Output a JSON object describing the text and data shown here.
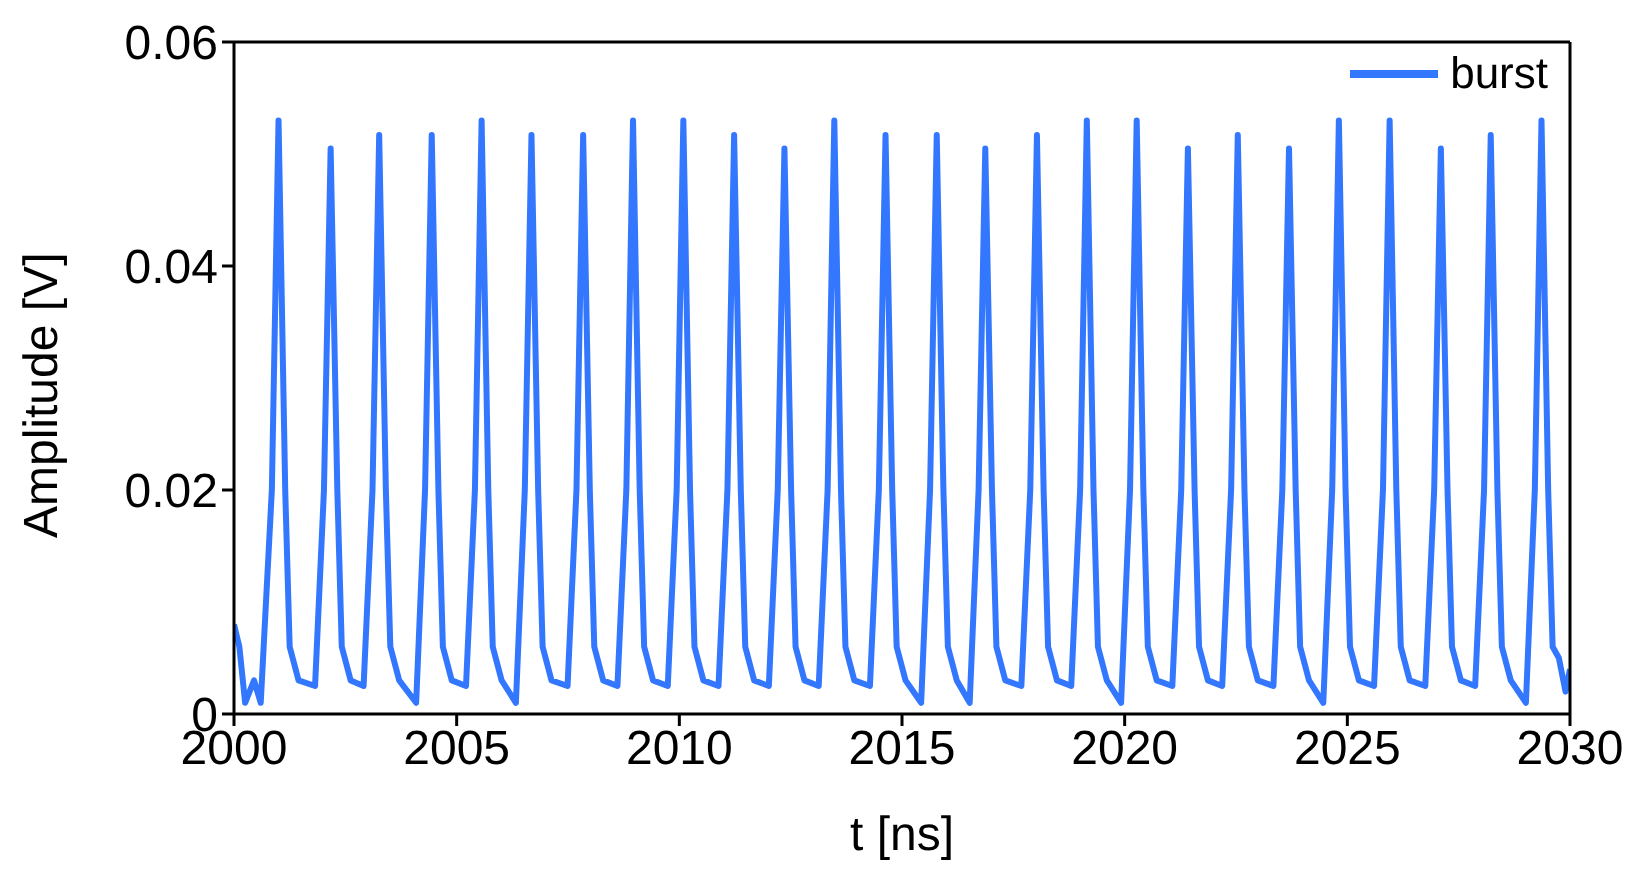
{
  "chart_data": {
    "type": "line",
    "xlabel": "t [ns]",
    "ylabel": "Amplitude [V]",
    "xlim": [
      2000,
      2030
    ],
    "xticks": [
      2000,
      2005,
      2010,
      2015,
      2020,
      2025,
      2030
    ],
    "ylim": [
      0,
      0.06
    ],
    "yticks": [
      0,
      0.02,
      0.04,
      0.06
    ],
    "legend": "top right",
    "grid": false,
    "marker": "none",
    "line_style": "solid",
    "x": [
      2000,
      2000.12,
      2000.25,
      2000.45,
      2000.6,
      2000.85,
      2001.0,
      2001.15,
      2001.25,
      2001.45,
      2001.82,
      2002.02,
      2002.17,
      2002.32,
      2002.42,
      2002.62,
      2002.91,
      2003.11,
      2003.26,
      2003.41,
      2003.51,
      2003.71,
      2004.09,
      2004.29,
      2004.44,
      2004.59,
      2004.69,
      2004.89,
      2005.21,
      2005.41,
      2005.56,
      2005.71,
      2005.81,
      2006.01,
      2006.33,
      2006.53,
      2006.68,
      2006.83,
      2006.93,
      2007.13,
      2007.49,
      2007.69,
      2007.84,
      2007.99,
      2008.09,
      2008.29,
      2008.61,
      2008.81,
      2008.96,
      2009.11,
      2009.21,
      2009.41,
      2009.74,
      2009.94,
      2010.09,
      2010.24,
      2010.34,
      2010.54,
      2010.88,
      2011.08,
      2011.23,
      2011.38,
      2011.48,
      2011.68,
      2012.01,
      2012.21,
      2012.36,
      2012.51,
      2012.61,
      2012.81,
      2013.13,
      2013.33,
      2013.48,
      2013.63,
      2013.73,
      2013.93,
      2014.28,
      2014.48,
      2014.63,
      2014.78,
      2014.88,
      2015.08,
      2015.43,
      2015.63,
      2015.78,
      2015.93,
      2016.03,
      2016.23,
      2016.52,
      2016.72,
      2016.87,
      2017.02,
      2017.12,
      2017.32,
      2017.68,
      2017.88,
      2018.03,
      2018.18,
      2018.28,
      2018.48,
      2018.8,
      2019.0,
      2019.15,
      2019.3,
      2019.4,
      2019.6,
      2019.92,
      2020.12,
      2020.27,
      2020.42,
      2020.52,
      2020.72,
      2021.07,
      2021.27,
      2021.42,
      2021.57,
      2021.67,
      2021.87,
      2022.19,
      2022.39,
      2022.54,
      2022.69,
      2022.79,
      2022.99,
      2023.34,
      2023.54,
      2023.69,
      2023.84,
      2023.94,
      2024.14,
      2024.46,
      2024.66,
      2024.81,
      2024.96,
      2025.06,
      2025.26,
      2025.6,
      2025.8,
      2025.95,
      2026.1,
      2026.2,
      2026.4,
      2026.75,
      2026.95,
      2027.1,
      2027.25,
      2027.35,
      2027.55,
      2027.87,
      2028.07,
      2028.22,
      2028.37,
      2028.47,
      2028.67,
      2029.01,
      2029.21,
      2029.36,
      2029.51,
      2029.61,
      2029.75,
      2029.9,
      2030
    ],
    "series": [
      {
        "name": "burst",
        "color": "#3377ff",
        "values": [
          0.008,
          0.006,
          0.001,
          0.003,
          0.001,
          0.02,
          0.053,
          0.02,
          0.006,
          0.003,
          0.0025,
          0.02,
          0.0505,
          0.02,
          0.006,
          0.003,
          0.0025,
          0.02,
          0.0517,
          0.02,
          0.006,
          0.003,
          0.001,
          0.02,
          0.0517,
          0.02,
          0.006,
          0.003,
          0.0025,
          0.02,
          0.053,
          0.02,
          0.006,
          0.003,
          0.001,
          0.02,
          0.0517,
          0.02,
          0.006,
          0.003,
          0.0025,
          0.02,
          0.0517,
          0.02,
          0.006,
          0.003,
          0.0025,
          0.02,
          0.053,
          0.02,
          0.006,
          0.003,
          0.0025,
          0.02,
          0.053,
          0.02,
          0.006,
          0.003,
          0.0025,
          0.02,
          0.0517,
          0.02,
          0.006,
          0.003,
          0.0025,
          0.02,
          0.0505,
          0.02,
          0.006,
          0.003,
          0.0025,
          0.02,
          0.053,
          0.02,
          0.006,
          0.003,
          0.0025,
          0.02,
          0.0517,
          0.02,
          0.006,
          0.003,
          0.001,
          0.02,
          0.0517,
          0.02,
          0.006,
          0.003,
          0.001,
          0.02,
          0.0505,
          0.02,
          0.006,
          0.003,
          0.0025,
          0.02,
          0.0517,
          0.02,
          0.006,
          0.003,
          0.0025,
          0.02,
          0.053,
          0.02,
          0.006,
          0.003,
          0.001,
          0.02,
          0.053,
          0.02,
          0.006,
          0.003,
          0.0025,
          0.02,
          0.0505,
          0.02,
          0.006,
          0.003,
          0.0025,
          0.02,
          0.0517,
          0.02,
          0.006,
          0.003,
          0.0025,
          0.02,
          0.0505,
          0.02,
          0.006,
          0.003,
          0.001,
          0.02,
          0.053,
          0.02,
          0.006,
          0.003,
          0.0025,
          0.02,
          0.053,
          0.02,
          0.006,
          0.003,
          0.0025,
          0.02,
          0.0505,
          0.02,
          0.006,
          0.003,
          0.0025,
          0.02,
          0.0517,
          0.02,
          0.006,
          0.003,
          0.001,
          0.02,
          0.053,
          0.02,
          0.006,
          0.005,
          0.002,
          0.004
        ]
      }
    ]
  }
}
